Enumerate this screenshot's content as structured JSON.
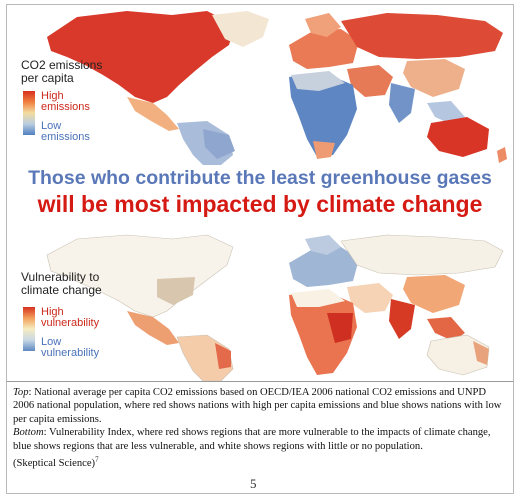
{
  "map_top": {
    "legend_title": "CO2 emissions\nper capita",
    "legend_high": "High\nemissions",
    "legend_low": "Low\nemissions"
  },
  "headline": {
    "line1": "Those who contribute the least greenhouse gases",
    "line2": "will be most impacted by climate change"
  },
  "map_bottom": {
    "legend_title": "Vulnerability to\nclimate change",
    "legend_high": "High\nvulnerability",
    "legend_low": "Low\nvulnerability"
  },
  "caption": {
    "top_label": "Top",
    "top_text": ": National average per capita CO2 emissions based on OECD/IEA 2006 national CO2 emissions and UNPD 2006 national population, where red shows nations with high per capita emissions and blue shows nations with low per capita emissions.",
    "bottom_label": "Bottom",
    "bottom_text": ": Vulnerability Index, where red shows regions that are more vulnerable to the impacts of climate change, blue shows regions that are less vulnerable, and white shows regions with little or no population.",
    "source": "(Skeptical Science)",
    "footnote": "7"
  },
  "page_number": "5",
  "colors": {
    "high": "#d7301f",
    "low": "#4f7fbf",
    "headline_blue": "#5a78b8",
    "headline_red": "#d51a14"
  }
}
